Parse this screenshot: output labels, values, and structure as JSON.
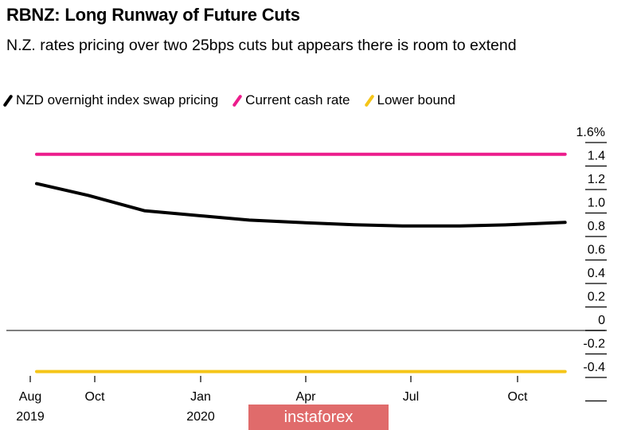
{
  "chart_data": {
    "type": "line",
    "title": "RBNZ: Long Runway of Future Cuts",
    "subtitle": "N.Z. rates pricing over two 25bps cuts but appears there is room to extend",
    "yunit": "%",
    "ylim": [
      -0.5,
      1.6
    ],
    "yticks": [
      "1.6%",
      "1.4",
      "1.2",
      "1.0",
      "0.8",
      "0.6",
      "0.4",
      "0.2",
      "0",
      "-0.2",
      "-0.4"
    ],
    "ytick_values": [
      1.6,
      1.4,
      1.2,
      1.0,
      0.8,
      0.6,
      0.4,
      0.2,
      0,
      -0.2,
      -0.4
    ],
    "xticks": [
      {
        "date": "2019-08-01",
        "label": "Aug",
        "sub": "2019"
      },
      {
        "date": "2019-10-01",
        "label": "Oct",
        "sub": ""
      },
      {
        "date": "2020-01-01",
        "label": "Jan",
        "sub": "2020"
      },
      {
        "date": "2020-04-01",
        "label": "Apr",
        "sub": ""
      },
      {
        "date": "2020-07-01",
        "label": "Jul",
        "sub": ""
      },
      {
        "date": "2020-10-01",
        "label": "Oct",
        "sub": ""
      }
    ],
    "legend_position": "top-left",
    "grid": false,
    "series": [
      {
        "name": "NZD overnight index swap pricing",
        "color": "#000000",
        "points": [
          [
            "2019-08-07",
            1.25
          ],
          [
            "2019-09-25",
            1.15
          ],
          [
            "2019-11-13",
            1.02
          ],
          [
            "2020-02-12",
            0.94
          ],
          [
            "2020-03-25",
            0.92
          ],
          [
            "2020-05-13",
            0.9
          ],
          [
            "2020-06-24",
            0.89
          ],
          [
            "2020-08-12",
            0.89
          ],
          [
            "2020-09-23",
            0.9
          ],
          [
            "2020-11-11",
            0.92
          ]
        ]
      },
      {
        "name": "Current cash rate",
        "color": "#ec1c8c",
        "points": [
          [
            "2019-08-07",
            1.5
          ],
          [
            "2020-11-11",
            1.5
          ]
        ]
      },
      {
        "name": "Lower bound",
        "color": "#f5c518",
        "points": [
          [
            "2019-08-07",
            -0.35
          ],
          [
            "2020-11-11",
            -0.35
          ]
        ]
      }
    ]
  },
  "watermark": "instaforex"
}
